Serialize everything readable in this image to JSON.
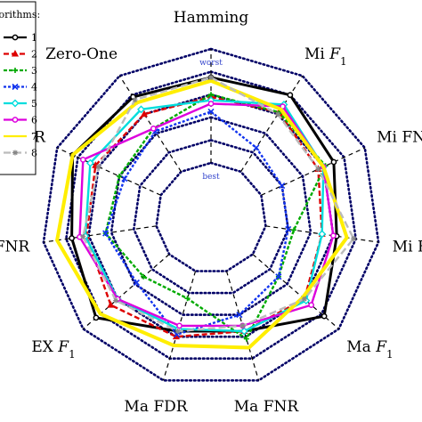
{
  "chart_data": {
    "type": "radar",
    "axes": [
      "Hamming",
      "Mi F1",
      "Mi FNR",
      "Mi FDR",
      "Ma F1",
      "Ma FNR",
      "Ma FDR",
      "EX F1",
      "FNR",
      "EX FDR",
      "Zero-One"
    ],
    "axis_labels": [
      {
        "text": "Hamming",
        "sub": ""
      },
      {
        "text": "Mi F",
        "sub": "1"
      },
      {
        "text": "Mi FNR",
        "sub": ""
      },
      {
        "text": "Mi FDR",
        "sub": ""
      },
      {
        "text": "Ma F",
        "sub": "1"
      },
      {
        "text": "Ma FNR",
        "sub": ""
      },
      {
        "text": "Ma FDR",
        "sub": ""
      },
      {
        "text": "EX F",
        "sub": "1"
      },
      {
        "text": "FNR",
        "sub": ""
      },
      {
        "text": "EX FDR",
        "sub": ""
      },
      {
        "text": "Zero-One",
        "sub": ""
      }
    ],
    "scale_labels": {
      "outer": "worst",
      "inner": "best"
    },
    "rlim": [
      0,
      1
    ],
    "rings": 5,
    "legend": {
      "title": "Algorithms:",
      "placement": "top-left",
      "entries": [
        "1",
        "2",
        "3",
        "4",
        "5",
        "6",
        "7",
        "8"
      ]
    },
    "series": [
      {
        "name": "1",
        "color": "#000000",
        "dash": "",
        "marker": "circle",
        "values": [
          0.75,
          0.8,
          0.7,
          0.63,
          0.83,
          0.55,
          0.55,
          0.85,
          0.75,
          0.85,
          0.78
        ]
      },
      {
        "name": "2",
        "color": "#dd0000",
        "dash": "6,3",
        "marker": "triangle",
        "values": [
          0.58,
          0.62,
          0.55,
          0.5,
          0.6,
          0.55,
          0.6,
          0.68,
          0.62,
          0.63,
          0.6
        ]
      },
      {
        "name": "3",
        "color": "#00aa00",
        "dash": "4,2",
        "marker": "plus",
        "values": [
          0.6,
          0.62,
          0.62,
          0.25,
          0.3,
          0.62,
          0.25,
          0.3,
          0.45,
          0.4,
          0.45
        ]
      },
      {
        "name": "4",
        "color": "#1133ee",
        "dash": "3,2",
        "marker": "x",
        "values": [
          0.45,
          0.25,
          0.2,
          0.2,
          0.3,
          0.4,
          0.58,
          0.38,
          0.45,
          0.35,
          0.42
        ]
      },
      {
        "name": "5",
        "color": "#00dddd",
        "dash": "",
        "marker": "diamond",
        "values": [
          0.55,
          0.7,
          0.6,
          0.5,
          0.62,
          0.55,
          0.53,
          0.6,
          0.63,
          0.68,
          0.65
        ]
      },
      {
        "name": "6",
        "color": "#dd00dd",
        "dash": "",
        "marker": "circle",
        "values": [
          0.52,
          0.68,
          0.6,
          0.6,
          0.68,
          0.5,
          0.5,
          0.6,
          0.68,
          0.75,
          0.45
        ]
      },
      {
        "name": "7",
        "color": "#ffee00",
        "dash": "",
        "marker": "none",
        "values": [
          0.72,
          0.65,
          0.6,
          0.72,
          0.58,
          0.7,
          0.68,
          0.8,
          0.88,
          0.85,
          0.72
        ]
      },
      {
        "name": "8",
        "color": "#bbbbbb",
        "dash": "8,4",
        "marker": "star",
        "values": [
          0.75,
          0.6,
          0.55,
          0.78,
          0.6,
          0.5,
          0.55,
          0.62,
          0.65,
          0.6,
          0.75
        ]
      }
    ],
    "grid_color": "#000066",
    "grid_style": "dotted"
  }
}
